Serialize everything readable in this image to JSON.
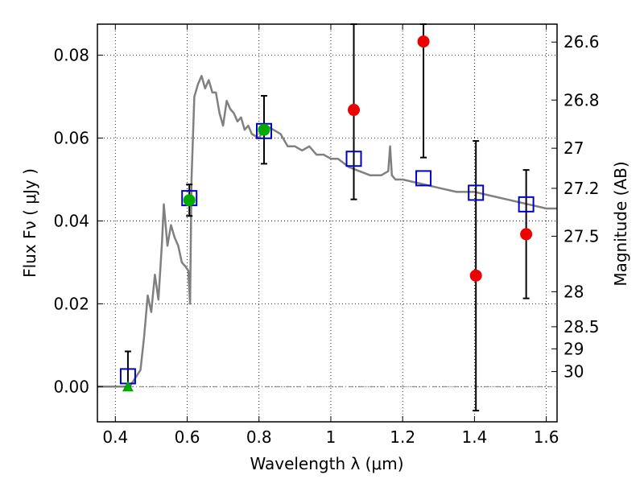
{
  "chart_data": {
    "type": "scatter",
    "xlabel": "Wavelength  λ (μm)",
    "ylabel": "Flux  Fν  ( μJy )",
    "ylabel_right": "Magnitude (AB)",
    "xlim": [
      0.35,
      1.63
    ],
    "ylim": [
      -0.0085,
      0.0875
    ],
    "grid": true,
    "x_ticks": [
      {
        "value": 0.4,
        "label": "0.4"
      },
      {
        "value": 0.6,
        "label": "0.6"
      },
      {
        "value": 0.8,
        "label": "0.8"
      },
      {
        "value": 1.0,
        "label": "1"
      },
      {
        "value": 1.2,
        "label": "1.2"
      },
      {
        "value": 1.4,
        "label": "1.4"
      },
      {
        "value": 1.6,
        "label": "1.6"
      }
    ],
    "y_ticks": [
      {
        "value": 0.0,
        "label": "0.00"
      },
      {
        "value": 0.02,
        "label": "0.02"
      },
      {
        "value": 0.04,
        "label": "0.04"
      },
      {
        "value": 0.06,
        "label": "0.06"
      },
      {
        "value": 0.08,
        "label": "0.08"
      }
    ],
    "magnitude_ticks": [
      "26.6",
      "26.8",
      "27",
      "27.2",
      "27.5",
      "28",
      "28.5",
      "29",
      "30"
    ],
    "series": [
      {
        "kind": "model_spectrum",
        "color": "#808080",
        "x": [
          0.35,
          0.44,
          0.47,
          0.48,
          0.49,
          0.5,
          0.51,
          0.52,
          0.53,
          0.535,
          0.545,
          0.555,
          0.565,
          0.575,
          0.585,
          0.595,
          0.603,
          0.608,
          0.612,
          0.62,
          0.63,
          0.64,
          0.65,
          0.66,
          0.67,
          0.68,
          0.69,
          0.7,
          0.71,
          0.72,
          0.73,
          0.74,
          0.75,
          0.76,
          0.77,
          0.78,
          0.8,
          0.82,
          0.84,
          0.86,
          0.88,
          0.9,
          0.92,
          0.94,
          0.96,
          0.98,
          1.0,
          1.02,
          1.05,
          1.08,
          1.11,
          1.14,
          1.16,
          1.165,
          1.17,
          1.18,
          1.2,
          1.25,
          1.3,
          1.35,
          1.4,
          1.45,
          1.5,
          1.55,
          1.6,
          1.63
        ],
        "y": [
          0.0,
          0.0,
          0.004,
          0.012,
          0.022,
          0.018,
          0.027,
          0.021,
          0.035,
          0.044,
          0.034,
          0.039,
          0.036,
          0.034,
          0.03,
          0.029,
          0.028,
          0.02,
          0.05,
          0.07,
          0.073,
          0.075,
          0.072,
          0.074,
          0.071,
          0.071,
          0.066,
          0.063,
          0.069,
          0.067,
          0.066,
          0.064,
          0.065,
          0.062,
          0.063,
          0.061,
          0.06,
          0.063,
          0.062,
          0.061,
          0.058,
          0.058,
          0.057,
          0.058,
          0.056,
          0.056,
          0.055,
          0.055,
          0.053,
          0.052,
          0.051,
          0.051,
          0.052,
          0.058,
          0.051,
          0.05,
          0.05,
          0.049,
          0.048,
          0.047,
          0.047,
          0.046,
          0.045,
          0.044,
          0.043,
          0.043
        ]
      },
      {
        "kind": "model_photometry",
        "marker": "open-square",
        "color": "#0000cc",
        "points": [
          {
            "x": 0.435,
            "y": 0.0025
          },
          {
            "x": 0.606,
            "y": 0.0455
          },
          {
            "x": 0.814,
            "y": 0.0617
          },
          {
            "x": 1.064,
            "y": 0.055
          },
          {
            "x": 1.258,
            "y": 0.0503
          },
          {
            "x": 1.404,
            "y": 0.0468
          },
          {
            "x": 1.544,
            "y": 0.044
          }
        ]
      },
      {
        "kind": "observed_detections",
        "marker": "circle",
        "color": "#00aa00",
        "points": [
          {
            "x": 0.606,
            "y": 0.045,
            "yerr_low": 0.0412,
            "yerr_high": 0.0488
          },
          {
            "x": 0.814,
            "y": 0.062,
            "yerr_low": 0.0538,
            "yerr_high": 0.0702
          }
        ]
      },
      {
        "kind": "observed_upper_limit",
        "marker": "triangle",
        "color": "#00aa00",
        "points": [
          {
            "x": 0.435,
            "y": 0.0,
            "yerr_low": 0.0,
            "yerr_high": 0.0085
          }
        ]
      },
      {
        "kind": "observed_low_snr",
        "marker": "circle",
        "color": "#ee0000",
        "points": [
          {
            "x": 1.064,
            "y": 0.0668,
            "yerr_low": 0.0452,
            "yerr_high": 0.0875
          },
          {
            "x": 1.258,
            "y": 0.0833,
            "yerr_low": 0.0553,
            "yerr_high": 0.0875
          },
          {
            "x": 1.404,
            "y": 0.0268,
            "yerr_low": -0.0058,
            "yerr_high": 0.0593
          },
          {
            "x": 1.544,
            "y": 0.0368,
            "yerr_low": 0.0213,
            "yerr_high": 0.0523
          }
        ]
      }
    ]
  }
}
